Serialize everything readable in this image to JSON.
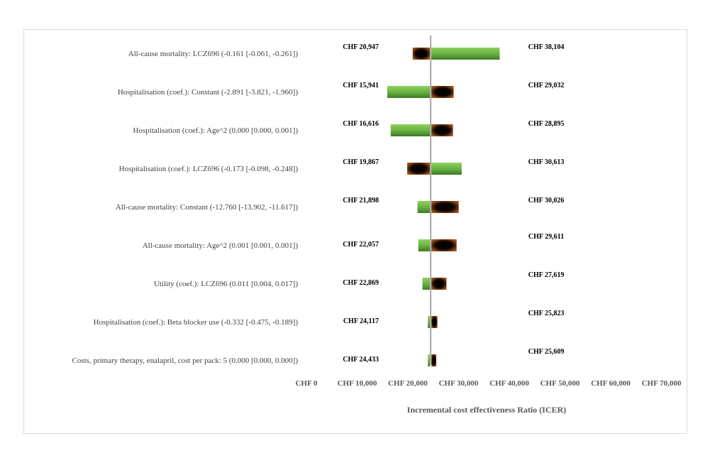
{
  "chart_data": {
    "type": "bar",
    "orientation": "horizontal",
    "chart_style": "tornado",
    "base_value": 24500,
    "xlabel": "Incremental cost effectiveness Ratio (ICER)",
    "ylabel": "",
    "xlim": [
      0,
      70000
    ],
    "x_ticks": [
      0,
      10000,
      20000,
      30000,
      40000,
      50000,
      60000,
      70000
    ],
    "x_tick_labels": [
      "CHF 0",
      "CHF 10,000",
      "CHF 20,000",
      "CHF 30,000",
      "CHF 40,000",
      "CHF 50,000",
      "CHF 60,000",
      "CHF 70,000"
    ],
    "grid": false,
    "legend": "none",
    "colors": {
      "green": "#6ab344",
      "dark": "#1a0d00",
      "dark_edge": "#a5541c"
    },
    "categories": [
      "All-cause mortality: LCZ696 (-0.161 [-0.061, -0.261])",
      "Hospitalisation (coef.): Constant (-2.891 [-3.821, -1.960])",
      "Hospitalisation (coef.): Age^2 (0.000 [0.000, 0.001])",
      "Hospitalisation (coef.): LCZ696 (-0.173 [-0.098, -0.248])",
      "All-cause mortality: Constant (-12.760 [-13.902, -11.617])",
      "All-cause mortality: Age^2  (0.001 [0.001, 0.001])",
      "Utility (coef.): LCZ696 (0.011 [0.004, 0.017])",
      "Hospitalisation (coef.): Beta blocker use  (-0.332 [-0.475, -0.189])",
      "Costs, primary therapy, enalapril, cost per pack: 5 (0.000 [0.000, 0.000])"
    ],
    "low_values": [
      20947,
      15941,
      16616,
      19867,
      21898,
      22057,
      22869,
      24117,
      24433
    ],
    "high_values": [
      38104,
      29032,
      28895,
      30613,
      30026,
      29611,
      27619,
      25823,
      25609
    ],
    "low_labels": [
      "CHF  20,947",
      "CHF  15,941",
      "CHF  16,616",
      "CHF  19,867",
      "CHF  21,898",
      "CHF  22,057",
      "CHF  22,869",
      "CHF  24,117",
      "CHF  24,433"
    ],
    "high_labels": [
      "CHF  38,104",
      "CHF  29,032",
      "CHF  28,895",
      "CHF  30,613",
      "CHF  30,026",
      "CHF  29,611",
      "CHF  27,619",
      "CHF  25,823",
      "CHF  25,609"
    ],
    "low_bar_color": [
      "dark",
      "green",
      "green",
      "dark",
      "green",
      "green",
      "green",
      "green",
      "green"
    ],
    "high_bar_color": [
      "green",
      "dark",
      "dark",
      "green",
      "dark",
      "dark",
      "dark",
      "dark",
      "dark"
    ]
  }
}
